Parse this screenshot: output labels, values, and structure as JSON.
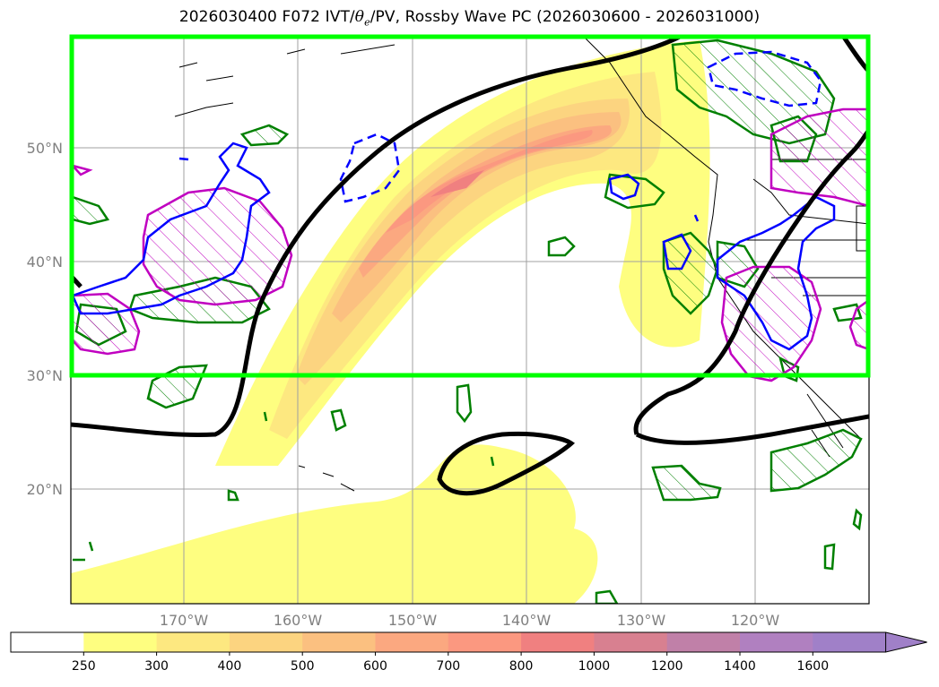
{
  "title": {
    "prefix": "2026030400 F072 IVT/",
    "theta": "θ",
    "theta_sub": "e",
    "suffix": "/PV, Rossby Wave PC (2026030600 - 2026031000)"
  },
  "map": {
    "lat_labels": [
      "50°N",
      "40°N",
      "30°N",
      "20°N"
    ],
    "lon_labels": [
      "170°W",
      "160°W",
      "150°W",
      "140°W",
      "130°W",
      "120°W"
    ],
    "box_color": "#00ff00",
    "contour_colors": {
      "rossby": "#000000",
      "pv_positive": "#0000ff",
      "pv_magenta": "#c000c0",
      "theta_e": "#008000"
    }
  },
  "colorbar": {
    "levels": [
      "250",
      "300",
      "400",
      "500",
      "600",
      "700",
      "800",
      "1000",
      "1200",
      "1400",
      "1600"
    ],
    "colors": [
      "#ffffff",
      "#fefe80",
      "#fde880",
      "#fcd480",
      "#fbc080",
      "#fba880",
      "#fb9880",
      "#f08080",
      "#d88090",
      "#c080a8",
      "#b080c0",
      "#a080c8"
    ]
  }
}
